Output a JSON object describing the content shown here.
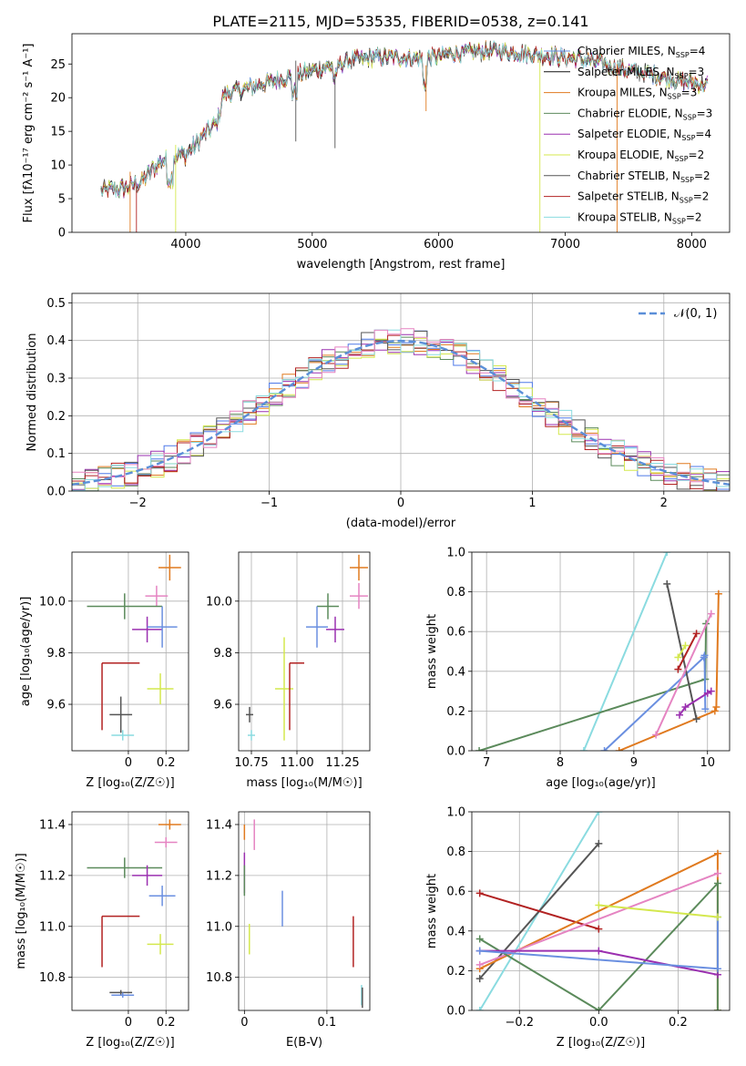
{
  "figure_title": "PLATE=2115, MJD=53535, FIBERID=0538, z=0.141",
  "colors": {
    "cm": "#4e79e8",
    "sm": "#111111",
    "km": "#e07a1f",
    "ce": "#5b8a5b",
    "se": "#9b30b0",
    "ke": "#d4e84e",
    "cs": "#555555",
    "ss": "#b22222",
    "ks": "#8adbe0",
    "pink": "#e584c2",
    "steelblue": "#6a8fe0",
    "gaussian": "#5b8fd8"
  },
  "chart_data": [
    {
      "id": "spectrum",
      "type": "line",
      "title": "PLATE=2115, MJD=53535, FIBERID=0538, z=0.141",
      "xlabel": "wavelength [Angstrom, rest frame]",
      "ylabel": "Flux [fλ10⁻¹⁷ erg cm⁻² s⁻¹ A⁻¹]",
      "xlim": [
        3100,
        8300
      ],
      "ylim": [
        0,
        29.5
      ],
      "xticks": [
        4000,
        5000,
        6000,
        7000,
        8000
      ],
      "yticks": [
        0,
        5,
        10,
        15,
        20,
        25
      ],
      "legend_position": "top-right",
      "legend": [
        "Chabrier MILES, N_SSP=4",
        "Salpeter MILES, N_SSP=3",
        "Kroupa MILES, N_SSP=3",
        "Chabrier ELODIE, N_SSP=3",
        "Salpeter ELODIE, N_SSP=4",
        "Kroupa ELODIE, N_SSP=2",
        "Chabrier STELIB, N_SSP=2",
        "Salpeter STELIB, N_SSP=2",
        "Kroupa STELIB, N_SSP=2"
      ],
      "legend_colors": [
        "#6a8fe0",
        "#111111",
        "#e07a1f",
        "#5b8a5b",
        "#9b30b0",
        "#d4e84e",
        "#555555",
        "#b22222",
        "#8adbe0"
      ],
      "envelope_wavelength": [
        3350,
        3500,
        3650,
        3800,
        3950,
        4000,
        4150,
        4250,
        4300,
        4500,
        4700,
        4900,
        5100,
        5300,
        5500,
        5700,
        5900,
        6100,
        6300,
        6500,
        6700,
        6900,
        7100,
        7300,
        7500,
        7700,
        7900,
        8100
      ],
      "envelope_flux": [
        6.2,
        6.5,
        7.5,
        10.5,
        11.5,
        11.5,
        14.5,
        16.5,
        20.5,
        21.5,
        22.5,
        23.5,
        24.5,
        25.5,
        26.0,
        26.0,
        25.8,
        26.5,
        26.8,
        27.0,
        26.5,
        26.2,
        25.8,
        25.0,
        24.0,
        23.5,
        22.5,
        22.0
      ],
      "drops_to_zero_wavelength": [
        3920,
        5900,
        6800,
        7410
      ]
    },
    {
      "id": "residuals",
      "type": "line",
      "xlabel": "(data-model)/error",
      "ylabel": "Normed distribution",
      "xlim": [
        -2.5,
        2.5
      ],
      "ylim": [
        0,
        0.525
      ],
      "xticks": [
        -2,
        -1,
        0,
        1,
        2
      ],
      "yticks": [
        0.0,
        0.1,
        0.2,
        0.3,
        0.4,
        0.5
      ],
      "legend_position": "top-right",
      "legend": [
        "𝒩(0, 1)"
      ],
      "gaussian": {
        "mean": 0,
        "sigma": 1
      }
    },
    {
      "id": "age-vs-z",
      "type": "scatter",
      "xlabel": "Z [log₁₀(Z/Z☉)]",
      "ylabel": "age  [log₁₀(age/yr)]",
      "xlim": [
        -0.3,
        0.32
      ],
      "ylim": [
        9.42,
        10.19
      ],
      "xticks": [
        0.0,
        0.2
      ],
      "yticks": [
        9.6,
        9.8,
        10.0
      ],
      "points": [
        {
          "x": 0.22,
          "y": 10.13,
          "ex": 0.06,
          "ey": 0.05,
          "color": "#e07a1f"
        },
        {
          "x": 0.15,
          "y": 10.02,
          "ex": 0.06,
          "ey": 0.04,
          "color": "#e584c2"
        },
        {
          "x": -0.02,
          "y": 9.98,
          "ex": 0.2,
          "ey": 0.05,
          "color": "#5b8a5b"
        },
        {
          "x": 0.1,
          "y": 9.89,
          "ex": 0.08,
          "ey": 0.05,
          "color": "#9b30b0"
        },
        {
          "x": 0.18,
          "y": 9.9,
          "ex": 0.08,
          "ey": 0.08,
          "color": "#6a8fe0"
        },
        {
          "x": 0.17,
          "y": 9.66,
          "ex": 0.07,
          "ey": 0.06,
          "color": "#d4e84e"
        },
        {
          "x": -0.14,
          "y": 9.76,
          "ex": 0.2,
          "ey": 0.26,
          "color": "#b22222",
          "corner": true
        },
        {
          "x": -0.04,
          "y": 9.56,
          "ex": 0.06,
          "ey": 0.07,
          "color": "#555555"
        },
        {
          "x": -0.03,
          "y": 9.48,
          "ex": 0.06,
          "ey": 0.02,
          "color": "#8adbe0"
        }
      ]
    },
    {
      "id": "age-vs-mass",
      "type": "scatter",
      "xlabel": "mass [log₁₀(M/M☉)]",
      "ylabel": "",
      "xlim": [
        10.68,
        11.4
      ],
      "ylim": [
        9.42,
        10.19
      ],
      "xticks": [
        10.75,
        11.0,
        11.25
      ],
      "xtick_labels": [
        "10.75",
        "11.00",
        "11.25"
      ],
      "yticks": [
        9.6,
        9.8,
        10.0
      ],
      "points": [
        {
          "x": 11.34,
          "y": 10.13,
          "ex": 0.05,
          "ey": 0.05,
          "color": "#e07a1f"
        },
        {
          "x": 11.34,
          "y": 10.02,
          "ex": 0.05,
          "ey": 0.05,
          "color": "#e584c2"
        },
        {
          "x": 11.17,
          "y": 9.98,
          "ex": 0.06,
          "ey": 0.05,
          "color": "#5b8a5b"
        },
        {
          "x": 11.21,
          "y": 9.89,
          "ex": 0.05,
          "ey": 0.05,
          "color": "#9b30b0"
        },
        {
          "x": 11.11,
          "y": 9.9,
          "ex": 0.06,
          "ey": 0.08,
          "color": "#6a8fe0"
        },
        {
          "x": 10.93,
          "y": 9.66,
          "ex": 0.05,
          "ey": 0.2,
          "color": "#d4e84e"
        },
        {
          "x": 10.96,
          "y": 9.76,
          "ex": 0.08,
          "ey": 0.26,
          "color": "#b22222",
          "corner": true
        },
        {
          "x": 10.74,
          "y": 9.56,
          "ex": 0.02,
          "ey": 0.03,
          "color": "#555555"
        },
        {
          "x": 10.75,
          "y": 9.48,
          "ex": 0.02,
          "ey": 0.02,
          "color": "#8adbe0"
        }
      ]
    },
    {
      "id": "mass-weight-vs-age",
      "type": "line",
      "xlabel": "age  [log₁₀(age/yr)]",
      "ylabel": "mass weight",
      "xlim": [
        6.8,
        10.3
      ],
      "ylim": [
        0,
        1.0
      ],
      "xticks": [
        7,
        8,
        9,
        10
      ],
      "yticks": [
        0.0,
        0.2,
        0.4,
        0.6,
        0.8,
        1.0
      ],
      "series": [
        {
          "color": "#8adbe0",
          "x": [
            8.32,
            9.45
          ],
          "y": [
            0.0,
            1.0
          ]
        },
        {
          "color": "#5b8a5b",
          "x": [
            6.9,
            9.97,
            9.98
          ],
          "y": [
            0.0,
            0.36,
            0.64
          ]
        },
        {
          "color": "#6a8fe0",
          "x": [
            8.6,
            9.95,
            9.96,
            9.97
          ],
          "y": [
            0.0,
            0.47,
            0.48,
            0.21
          ]
        },
        {
          "color": "#e07a1f",
          "x": [
            8.8,
            10.1,
            10.12,
            10.15
          ],
          "y": [
            0.0,
            0.2,
            0.22,
            0.79
          ]
        },
        {
          "color": "#555555",
          "x": [
            9.45,
            9.85
          ],
          "y": [
            0.84,
            0.16
          ]
        },
        {
          "color": "#b22222",
          "x": [
            9.6,
            9.85
          ],
          "y": [
            0.41,
            0.59
          ]
        },
        {
          "color": "#e584c2",
          "x": [
            9.3,
            10.05
          ],
          "y": [
            0.08,
            0.69
          ]
        },
        {
          "color": "#9b30b0",
          "x": [
            9.62,
            9.7,
            10.0,
            10.05
          ],
          "y": [
            0.18,
            0.22,
            0.29,
            0.3
          ]
        },
        {
          "color": "#d4e84e",
          "x": [
            9.6,
            9.7
          ],
          "y": [
            0.47,
            0.53
          ]
        }
      ]
    },
    {
      "id": "mass-vs-z",
      "type": "scatter",
      "xlabel": "Z [log₁₀(Z/Z☉)]",
      "ylabel": "mass [log₁₀(M/M☉)]",
      "xlim": [
        -0.3,
        0.32
      ],
      "ylim": [
        10.67,
        11.45
      ],
      "xticks": [
        0.0,
        0.2
      ],
      "yticks": [
        10.8,
        11.0,
        11.2,
        11.4
      ],
      "points": [
        {
          "x": 0.22,
          "y": 11.4,
          "ex": 0.06,
          "ey": 0.02,
          "color": "#e07a1f"
        },
        {
          "x": 0.2,
          "y": 11.33,
          "ex": 0.06,
          "ey": 0.02,
          "color": "#e584c2"
        },
        {
          "x": -0.02,
          "y": 11.23,
          "ex": 0.2,
          "ey": 0.04,
          "color": "#5b8a5b"
        },
        {
          "x": 0.1,
          "y": 11.2,
          "ex": 0.08,
          "ey": 0.04,
          "color": "#9b30b0"
        },
        {
          "x": 0.18,
          "y": 11.12,
          "ex": 0.07,
          "ey": 0.04,
          "color": "#6a8fe0"
        },
        {
          "x": 0.17,
          "y": 10.93,
          "ex": 0.07,
          "ey": 0.04,
          "color": "#d4e84e"
        },
        {
          "x": -0.14,
          "y": 11.04,
          "ex": 0.2,
          "ey": 0.2,
          "color": "#b22222",
          "corner": true
        },
        {
          "x": -0.04,
          "y": 10.74,
          "ex": 0.06,
          "ey": 0.01,
          "color": "#555555"
        },
        {
          "x": -0.03,
          "y": 10.73,
          "ex": 0.06,
          "ey": 0.01,
          "color": "#6a8fe0"
        }
      ]
    },
    {
      "id": "mass-vs-ebv",
      "type": "scatter",
      "xlabel": "E(B-V)",
      "ylabel": "",
      "xlim": [
        -0.007,
        0.152
      ],
      "ylim": [
        10.67,
        11.45
      ],
      "xticks": [
        0.0,
        0.1
      ],
      "yticks": [
        10.8,
        11.0,
        11.2,
        11.4
      ],
      "points": [
        {
          "x": 0.0,
          "y": 11.37,
          "ex": 0.0,
          "ey": 0.03,
          "color": "#e07a1f"
        },
        {
          "x": 0.012,
          "y": 11.36,
          "ex": 0.0,
          "ey": 0.06,
          "color": "#e584c2"
        },
        {
          "x": 0.0,
          "y": 11.21,
          "ex": 0.0,
          "ey": 0.08,
          "color": "#9b30b0"
        },
        {
          "x": 0.0,
          "y": 11.18,
          "ex": 0.0,
          "ey": 0.06,
          "color": "#5b8a5b"
        },
        {
          "x": 0.046,
          "y": 11.07,
          "ex": 0.0,
          "ey": 0.07,
          "color": "#6a8fe0"
        },
        {
          "x": 0.006,
          "y": 10.95,
          "ex": 0.0,
          "ey": 0.06,
          "color": "#d4e84e"
        },
        {
          "x": 0.132,
          "y": 10.94,
          "ex": 0.0,
          "ey": 0.1,
          "color": "#b22222"
        },
        {
          "x": 0.142,
          "y": 10.73,
          "ex": 0.0,
          "ey": 0.04,
          "color": "#8adbe0"
        },
        {
          "x": 0.143,
          "y": 10.72,
          "ex": 0.0,
          "ey": 0.04,
          "color": "#555555"
        }
      ]
    },
    {
      "id": "mass-weight-vs-z",
      "type": "line",
      "xlabel": "Z [log₁₀(Z/Z☉)]",
      "ylabel": "mass weight",
      "xlim": [
        -0.32,
        0.33
      ],
      "ylim": [
        0,
        1.0
      ],
      "xticks": [
        -0.2,
        0.0,
        0.2
      ],
      "xtick_labels": [
        "−0.2",
        "0.0",
        "0.2"
      ],
      "yticks": [
        0.0,
        0.2,
        0.4,
        0.6,
        0.8,
        1.0
      ],
      "series": [
        {
          "color": "#8adbe0",
          "x": [
            -0.3,
            0.0
          ],
          "y": [
            0.0,
            1.0
          ]
        },
        {
          "color": "#555555",
          "x": [
            -0.3,
            0.0
          ],
          "y": [
            0.16,
            0.84
          ]
        },
        {
          "color": "#b22222",
          "x": [
            -0.3,
            0.0
          ],
          "y": [
            0.59,
            0.41
          ]
        },
        {
          "color": "#e07a1f",
          "x": [
            -0.3,
            0.3,
            0.3
          ],
          "y": [
            0.21,
            0.79,
            0.0
          ]
        },
        {
          "color": "#e584c2",
          "x": [
            -0.3,
            0.3
          ],
          "y": [
            0.23,
            0.69
          ]
        },
        {
          "color": "#5b8a5b",
          "x": [
            -0.3,
            0.0,
            0.3,
            0.3
          ],
          "y": [
            0.36,
            0.0,
            0.64,
            0.0
          ]
        },
        {
          "color": "#9b30b0",
          "x": [
            -0.3,
            0.0,
            0.3
          ],
          "y": [
            0.3,
            0.3,
            0.18
          ]
        },
        {
          "color": "#6a8fe0",
          "x": [
            -0.3,
            0.3,
            0.3
          ],
          "y": [
            0.3,
            0.21,
            0.47
          ]
        },
        {
          "color": "#d4e84e",
          "x": [
            0.0,
            0.3
          ],
          "y": [
            0.53,
            0.47
          ]
        }
      ]
    }
  ]
}
